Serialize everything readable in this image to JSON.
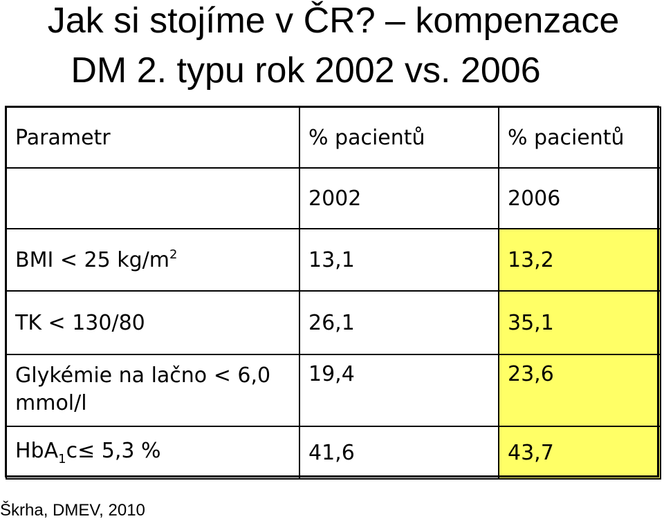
{
  "title": {
    "line1": "Jak si stojíme v ČR? – kompenzace",
    "line2": "DM 2. typu rok 2002 vs. 2006"
  },
  "table": {
    "header": {
      "param": "Parametr",
      "col1": "% pacientů",
      "col2": "% pacientů"
    },
    "years": {
      "param": "",
      "col1": "2002",
      "col2": "2006"
    },
    "rows": [
      {
        "param_main": "BMI < 25 kg/m",
        "param_sup": "2",
        "v2002": "13,1",
        "v2006": "13,2"
      },
      {
        "param_main": "TK < 130/80",
        "v2002": "26,1",
        "v2006": "35,1"
      },
      {
        "param_main": "Glykémie na lačno < 6,0 mmol/l",
        "v2002": "19,4",
        "v2006": "23,6"
      },
      {
        "param_pre": "HbA",
        "param_sub": "1",
        "param_post": "c≤ 5,3 %",
        "v2002": "41,6",
        "v2006": "43,7"
      }
    ],
    "highlight_color": "#ffff66"
  },
  "footer": {
    "source": "Škrha, DMEV, 2010"
  }
}
